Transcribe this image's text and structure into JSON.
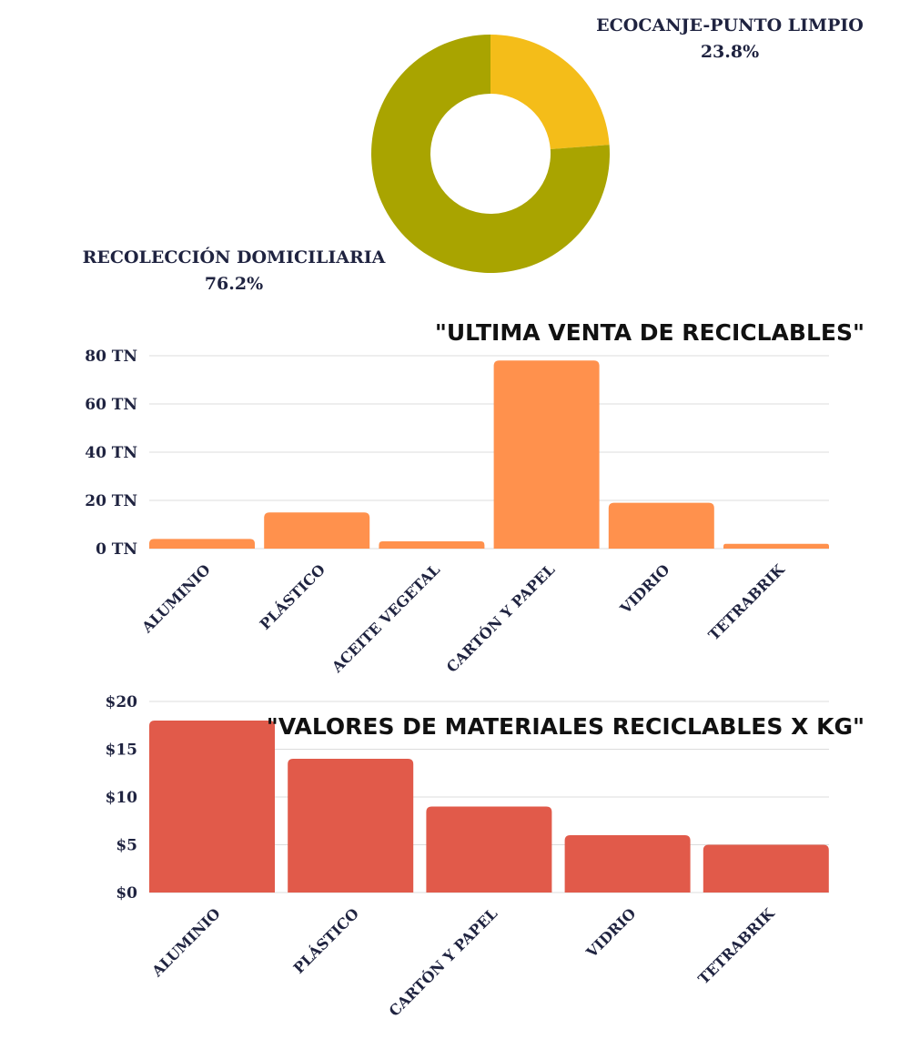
{
  "chart_data": [
    {
      "type": "pie",
      "slices": [
        {
          "label": "ECOCANJE-PUNTO LIMPIO",
          "value": 23.8,
          "value_label": "23.8%",
          "color": "#f4bd19"
        },
        {
          "label": "RECOLECCIÓN DOMICILIARIA",
          "value": 76.2,
          "value_label": "76.2%",
          "color": "#a9a400"
        }
      ]
    },
    {
      "type": "bar",
      "title": "\"ULTIMA VENTA DE RECICLABLES\"",
      "categories": [
        "ALUMINIO",
        "PLÁSTICO",
        "ACEITE VEGETAL",
        "CARTÓN Y PAPEL",
        "VIDRIO",
        "TETRABRIK"
      ],
      "values": [
        4,
        15,
        3,
        78,
        19,
        2
      ],
      "ylim": [
        0,
        80
      ],
      "yticks": [
        "0 TN",
        "20 TN",
        "40 TN",
        "60 TN",
        "80 TN"
      ],
      "color": "#ff914d",
      "grid": true
    },
    {
      "type": "bar",
      "title": "\"VALORES DE MATERIALES RECICLABLES X KG\"",
      "categories": [
        "ALUMINIO",
        "PLÁSTICO",
        "CARTÓN Y PAPEL",
        "VIDRIO",
        "TETRABRIK"
      ],
      "values": [
        18,
        14,
        9,
        6,
        5
      ],
      "ylim": [
        0,
        20
      ],
      "yticks": [
        "$0",
        "$5",
        "$10",
        "$15",
        "$20"
      ],
      "color": "#e15a4a",
      "grid": true
    }
  ]
}
